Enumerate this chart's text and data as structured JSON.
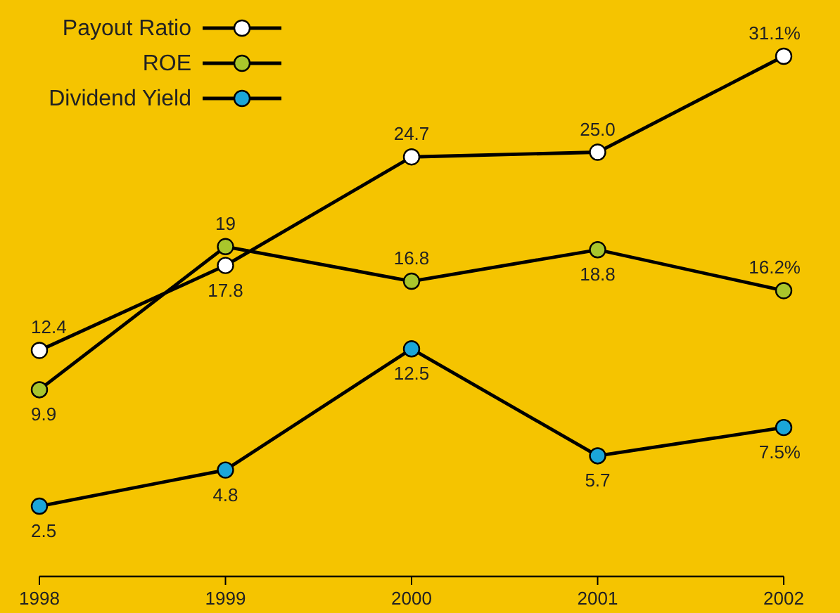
{
  "chart_data": {
    "type": "line",
    "categories": [
      "1998",
      "1999",
      "2000",
      "2001",
      "2002"
    ],
    "series": [
      {
        "name": "Payout Ratio",
        "color": "#ffffff",
        "values": [
          12.4,
          17.8,
          24.7,
          25.0,
          31.1
        ],
        "value_labels": [
          "12.4",
          "17.8",
          "24.7",
          "25.0",
          "31.1%"
        ]
      },
      {
        "name": "ROE",
        "color": "#a9c62b",
        "values": [
          9.9,
          19,
          16.8,
          18.8,
          16.2
        ],
        "value_labels": [
          "9.9",
          "19",
          "16.8",
          "18.8",
          "16.2%"
        ]
      },
      {
        "name": "Dividend Yield",
        "color": "#1ba6d8",
        "values": [
          2.5,
          4.8,
          12.5,
          5.7,
          7.5
        ],
        "value_labels": [
          "2.5",
          "4.8",
          "12.5",
          "5.7",
          "7.5%"
        ]
      }
    ],
    "marker": "circle",
    "line_style": "solid",
    "legend": "top left"
  }
}
